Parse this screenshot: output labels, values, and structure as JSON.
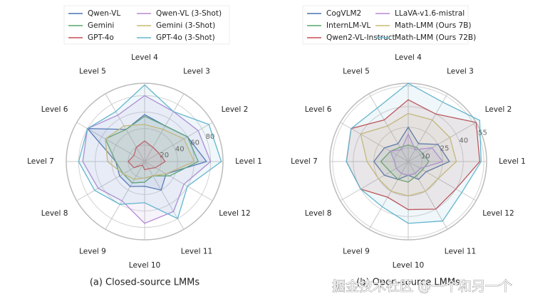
{
  "chart_data": [
    {
      "type": "radar",
      "title": "(a) Closed-source LMMs",
      "categories": [
        "Level 1",
        "Level 2",
        "Level 3",
        "Level 4",
        "Level 5",
        "Level 6",
        "Level 7",
        "Level 8",
        "Level 9",
        "Level 10",
        "Level 11",
        "Level 12"
      ],
      "rlim": [
        0,
        95
      ],
      "rticks": [
        20,
        40,
        60,
        80
      ],
      "grid": true,
      "legend": "top",
      "series": [
        {
          "name": "Qwen-VL",
          "color": "#4c72b0",
          "values": [
            75,
            60,
            50,
            57,
            45,
            80,
            35,
            35,
            35,
            30,
            40,
            30
          ]
        },
        {
          "name": "Gemini",
          "color": "#55a868",
          "values": [
            65,
            60,
            50,
            55,
            45,
            55,
            35,
            30,
            30,
            25,
            20,
            35
          ]
        },
        {
          "name": "GPT-4o",
          "color": "#c44e52",
          "values": [
            25,
            20,
            20,
            25,
            20,
            15,
            20,
            15,
            5,
            10,
            10,
            15
          ]
        },
        {
          "name": "Qwen-VL (3-Shot)",
          "color": "#b58ad6",
          "values": [
            80,
            75,
            70,
            80,
            65,
            80,
            75,
            65,
            55,
            75,
            70,
            55
          ]
        },
        {
          "name": "Gemini (3-Shot)",
          "color": "#ccb974",
          "values": [
            60,
            55,
            45,
            45,
            50,
            55,
            45,
            30,
            25,
            20,
            20,
            30
          ]
        },
        {
          "name": "GPT-4o (3-Shot)",
          "color": "#64b5cd",
          "values": [
            93,
            90,
            70,
            93,
            70,
            80,
            80,
            70,
            60,
            50,
            80,
            60
          ]
        }
      ]
    },
    {
      "type": "radar",
      "title": "(b) Open-source LMMs",
      "categories": [
        "Level 1",
        "Level 2",
        "Level 3",
        "Level 4",
        "Level 5",
        "Level 6",
        "Level 7",
        "Level 8",
        "Level 9",
        "Level 10",
        "Level 11",
        "Level 12"
      ],
      "rlim": [
        0,
        57
      ],
      "rticks": [
        10,
        25,
        40,
        55
      ],
      "grid": true,
      "legend": "top",
      "series": [
        {
          "name": "CogVLM2",
          "color": "#4c72b0",
          "values": [
            30,
            25,
            15,
            25,
            15,
            20,
            25,
            20,
            15,
            10,
            15,
            15
          ]
        },
        {
          "name": "InternLM-VL",
          "color": "#55a868",
          "values": [
            15,
            12,
            12,
            12,
            12,
            15,
            20,
            15,
            15,
            15,
            12,
            12
          ]
        },
        {
          "name": "Qwen2-VL-Instruct",
          "color": "#c44e52",
          "values": [
            52,
            57,
            40,
            45,
            35,
            48,
            45,
            40,
            30,
            35,
            40,
            40
          ]
        },
        {
          "name": "LLaVA-v1.6-mistral",
          "color": "#b58ad6",
          "values": [
            25,
            20,
            10,
            20,
            10,
            15,
            10,
            10,
            10,
            10,
            10,
            10
          ]
        },
        {
          "name": "Math-LMM (Ours 7B)",
          "color": "#ccb974",
          "values": [
            35,
            35,
            35,
            35,
            30,
            40,
            30,
            25,
            25,
            25,
            25,
            25
          ]
        },
        {
          "name": "Math-LMM (Ours 72B)",
          "color": "#64b5cd",
          "values": [
            53,
            60,
            50,
            57,
            45,
            48,
            45,
            40,
            38,
            45,
            50,
            45
          ]
        }
      ]
    }
  ],
  "watermark": "掘金技术社区 @一个和另一个"
}
